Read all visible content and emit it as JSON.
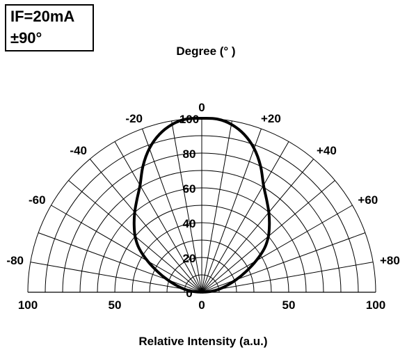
{
  "chart_data": {
    "type": "polar",
    "title": "Degree (°  )",
    "xlabel": "Relative Intensity (a.u.)",
    "conditions": [
      "IF=20mA",
      "±90°"
    ],
    "angle_unit": "degree",
    "angle_range": [
      -90,
      90
    ],
    "radial_range": [
      0,
      100
    ],
    "angle_tick_labels": [
      {
        "angle": -80,
        "text": "-80"
      },
      {
        "angle": -60,
        "text": "-60"
      },
      {
        "angle": -40,
        "text": "-40"
      },
      {
        "angle": -20,
        "text": "-20"
      },
      {
        "angle": 0,
        "text": "0"
      },
      {
        "angle": 20,
        "text": "+20"
      },
      {
        "angle": 40,
        "text": "+40"
      },
      {
        "angle": 60,
        "text": "+60"
      },
      {
        "angle": 80,
        "text": "+80"
      }
    ],
    "radial_tick_labels": [
      {
        "value": 0,
        "text": "0"
      },
      {
        "value": 20,
        "text": "20"
      },
      {
        "value": 40,
        "text": "40"
      },
      {
        "value": 60,
        "text": "60"
      },
      {
        "value": 80,
        "text": "80"
      },
      {
        "value": 100,
        "text": "100"
      }
    ],
    "x_tick_labels": [
      {
        "value": -100,
        "text": "100"
      },
      {
        "value": -50,
        "text": "50"
      },
      {
        "value": 0,
        "text": "0"
      },
      {
        "value": 50,
        "text": "50"
      },
      {
        "value": 100,
        "text": "100"
      }
    ],
    "grid": true,
    "series": [
      {
        "points": [
          {
            "angle": -90,
            "r": 0
          },
          {
            "angle": -85,
            "r": 5
          },
          {
            "angle": -80,
            "r": 10
          },
          {
            "angle": -75,
            "r": 15
          },
          {
            "angle": -70,
            "r": 21
          },
          {
            "angle": -65,
            "r": 28
          },
          {
            "angle": -60,
            "r": 36
          },
          {
            "angle": -55,
            "r": 44
          },
          {
            "angle": -50,
            "r": 50
          },
          {
            "angle": -45,
            "r": 55
          },
          {
            "angle": -40,
            "r": 60
          },
          {
            "angle": -35,
            "r": 65
          },
          {
            "angle": -30,
            "r": 71
          },
          {
            "angle": -25,
            "r": 80
          },
          {
            "angle": -20,
            "r": 88
          },
          {
            "angle": -15,
            "r": 94
          },
          {
            "angle": -10,
            "r": 98
          },
          {
            "angle": -5,
            "r": 100
          },
          {
            "angle": 0,
            "r": 100
          },
          {
            "angle": 5,
            "r": 100
          },
          {
            "angle": 10,
            "r": 98
          },
          {
            "angle": 15,
            "r": 94
          },
          {
            "angle": 20,
            "r": 88
          },
          {
            "angle": 25,
            "r": 80
          },
          {
            "angle": 30,
            "r": 71
          },
          {
            "angle": 35,
            "r": 65
          },
          {
            "angle": 40,
            "r": 60
          },
          {
            "angle": 45,
            "r": 55
          },
          {
            "angle": 50,
            "r": 50
          },
          {
            "angle": 55,
            "r": 44
          },
          {
            "angle": 60,
            "r": 36
          },
          {
            "angle": 65,
            "r": 28
          },
          {
            "angle": 70,
            "r": 21
          },
          {
            "angle": 75,
            "r": 15
          },
          {
            "angle": 80,
            "r": 10
          },
          {
            "angle": 85,
            "r": 5
          },
          {
            "angle": 90,
            "r": 0
          }
        ]
      }
    ],
    "colors": {
      "line": "#000000",
      "grid": "#000000"
    }
  }
}
